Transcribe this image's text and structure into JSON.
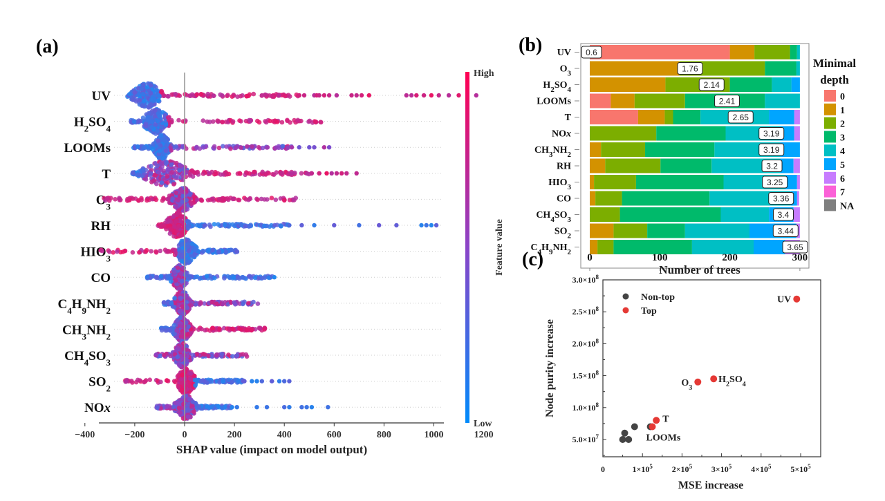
{
  "panels": {
    "a": "(a)",
    "b": "(b)",
    "c": "(c)"
  },
  "chart_data": [
    {
      "id": "a",
      "type": "scatter",
      "subtype": "shap-beeswarm",
      "title": "",
      "xlabel": "SHAP value (impact on model output)",
      "ylabel": "",
      "xlim": [
        -420,
        1260
      ],
      "xticks": [
        -400,
        -200,
        0,
        200,
        400,
        600,
        800,
        1000,
        1200
      ],
      "xtick_labels": [
        "−400",
        "−200",
        "0",
        "200",
        "400",
        "600",
        "800",
        "1000",
        "1200"
      ],
      "colorbar": {
        "label": "Feature value",
        "high": "High",
        "low": "Low",
        "high_color": "#ff0052",
        "mid_color": "#a42aa0",
        "low_color": "#008bfb"
      },
      "features": [
        {
          "name": "UV",
          "html": "UV",
          "min": -230,
          "max": 1170,
          "core": [
            -190,
            -110
          ],
          "core_value": "low",
          "tail_right_value": "high",
          "tail_left_value": "low",
          "outliers": [
            460,
            480,
            520,
            530,
            540,
            560,
            580,
            610,
            670,
            690,
            710,
            740,
            890,
            910,
            930,
            960,
            990,
            1020,
            1060,
            1100,
            1170
          ]
        },
        {
          "name": "H2SO4",
          "html": "H<tspan baseline-shift='sub' font-size='13'>2</tspan>SO<tspan baseline-shift='sub' font-size='13'>4</tspan>",
          "min": -215,
          "max": 560,
          "core": [
            -150,
            -80
          ],
          "core_value": "low",
          "tail_right_value": "high",
          "tail_left_value": "low",
          "outliers": []
        },
        {
          "name": "LOOMs",
          "html": "LOOMs",
          "min": -205,
          "max": 580,
          "core": [
            -110,
            -70
          ],
          "core_value": "low",
          "tail_right_value": "mixed",
          "tail_left_value": "low",
          "outliers": [
            430,
            460,
            500,
            520,
            560,
            580
          ]
        },
        {
          "name": "T",
          "html": "T",
          "min": -210,
          "max": 690,
          "core": [
            -150,
            0
          ],
          "core_value": "mixed",
          "tail_right_value": "high",
          "tail_left_value": "low",
          "outliers": [
            510,
            540,
            570,
            590,
            610,
            630,
            650,
            690
          ]
        },
        {
          "name": "O3",
          "html": "O<tspan baseline-shift='sub' font-size='13'>3</tspan>",
          "min": -345,
          "max": 450,
          "core": [
            -40,
            20
          ],
          "core_value": "mixed",
          "tail_right_value": "high",
          "tail_left_value": "high",
          "outliers": []
        },
        {
          "name": "RH",
          "html": "RH",
          "min": -110,
          "max": 1010,
          "core": [
            -60,
            0
          ],
          "core_value": "high",
          "tail_right_value": "low",
          "tail_left_value": "high",
          "outliers": [
            420,
            470,
            520,
            600,
            700,
            780,
            850,
            950,
            970,
            990,
            1010
          ]
        },
        {
          "name": "HIO3",
          "html": "HIO<tspan baseline-shift='sub' font-size='13'>3</tspan>",
          "min": -345,
          "max": 215,
          "core": [
            -20,
            30
          ],
          "core_value": "low",
          "tail_right_value": "low",
          "tail_left_value": "high",
          "outliers": []
        },
        {
          "name": "CO",
          "html": "CO",
          "min": -150,
          "max": 360,
          "core": [
            -40,
            0
          ],
          "core_value": "mixed",
          "tail_right_value": "low",
          "tail_left_value": "low",
          "outliers": [
            360
          ]
        },
        {
          "name": "C4H9NH2",
          "html": "C<tspan baseline-shift='sub' font-size='13'>4</tspan>H<tspan baseline-shift='sub' font-size='13'>9</tspan>NH<tspan baseline-shift='sub' font-size='13'>2</tspan>",
          "min": -85,
          "max": 295,
          "core": [
            -30,
            10
          ],
          "core_value": "mixed",
          "tail_right_value": "mixed",
          "tail_left_value": "low",
          "outliers": []
        },
        {
          "name": "CH3NH2",
          "html": "CH<tspan baseline-shift='sub' font-size='13'>3</tspan>NH<tspan baseline-shift='sub' font-size='13'>2</tspan>",
          "min": -95,
          "max": 325,
          "core": [
            -30,
            10
          ],
          "core_value": "mixed",
          "tail_right_value": "high",
          "tail_left_value": "low",
          "outliers": []
        },
        {
          "name": "CH4SO3",
          "html": "CH<tspan baseline-shift='sub' font-size='13'>4</tspan>SO<tspan baseline-shift='sub' font-size='13'>3</tspan>",
          "min": -125,
          "max": 250,
          "core": [
            -30,
            10
          ],
          "core_value": "mixed",
          "tail_right_value": "mixed",
          "tail_left_value": "mixed",
          "outliers": []
        },
        {
          "name": "SO2",
          "html": "SO<tspan baseline-shift='sub' font-size='13'>2</tspan>",
          "min": -240,
          "max": 420,
          "core": [
            -20,
            30
          ],
          "core_value": "high",
          "tail_right_value": "low",
          "tail_left_value": "high",
          "outliers": [
            240,
            270,
            290,
            310,
            350,
            380,
            400,
            420
          ]
        },
        {
          "name": "NOx",
          "html": "NO<tspan font-style='italic'>x</tspan>",
          "min": -115,
          "max": 575,
          "core": [
            -20,
            30
          ],
          "core_value": "mixed",
          "tail_right_value": "low",
          "tail_left_value": "mixed",
          "outliers": [
            190,
            210,
            290,
            330,
            400,
            420,
            470,
            490,
            510,
            575
          ]
        }
      ]
    },
    {
      "id": "b",
      "type": "bar",
      "subtype": "stacked-horizontal",
      "title": "",
      "xlabel": "Number  of trees",
      "ylabel": "",
      "xlim": [
        0,
        300
      ],
      "xticks": [
        0,
        100,
        200,
        300
      ],
      "legend": {
        "title_line1": "Minimal",
        "title_line2": "depth",
        "position": "right"
      },
      "depth_levels": [
        "0",
        "1",
        "2",
        "3",
        "4",
        "5",
        "6",
        "7",
        "NA"
      ],
      "depth_colors": [
        "#f8766d",
        "#d39200",
        "#7cae00",
        "#00ba6b",
        "#00bfc4",
        "#00a5ff",
        "#c77cff",
        "#fb61d7",
        "#7f7f7f"
      ],
      "categories": [
        "UV",
        "O3",
        "H2SO4",
        "LOOMs",
        "T",
        "NOx",
        "CH3NH2",
        "RH",
        "HIO3",
        "CO",
        "CH4SO3",
        "SO2",
        "C4H9NH2"
      ],
      "category_html": [
        "UV",
        "O<tspan baseline-shift='sub' font-size='11'>3</tspan>",
        "H<tspan baseline-shift='sub' font-size='11'>2</tspan>SO<tspan baseline-shift='sub' font-size='11'>4</tspan>",
        "LOOMs",
        "T",
        "NO<tspan font-style='italic'>x</tspan>",
        "CH<tspan baseline-shift='sub' font-size='11'>3</tspan>NH<tspan baseline-shift='sub' font-size='11'>2</tspan>",
        "RH",
        "HIO<tspan baseline-shift='sub' font-size='11'>3</tspan>",
        "CO",
        "CH<tspan baseline-shift='sub' font-size='11'>4</tspan>SO<tspan baseline-shift='sub' font-size='11'>3</tspan>",
        "SO<tspan baseline-shift='sub' font-size='11'>2</tspan>",
        "C<tspan baseline-shift='sub' font-size='11'>4</tspan>H<tspan baseline-shift='sub' font-size='11'>9</tspan>NH<tspan baseline-shift='sub' font-size='11'>2</tspan>"
      ],
      "series_counts_by_depth": [
        [
          200,
          35,
          51,
          10,
          4,
          0,
          0,
          0,
          0
        ],
        [
          0,
          128,
          122,
          45,
          5,
          0,
          0,
          0,
          0
        ],
        [
          0,
          108,
          92,
          60,
          28,
          12,
          0,
          0,
          0
        ],
        [
          30,
          34,
          72,
          114,
          50,
          0,
          0,
          0,
          0
        ],
        [
          69,
          38,
          12,
          39,
          98,
          36,
          8,
          0,
          0
        ],
        [
          0,
          0,
          95,
          99,
          77,
          21,
          8,
          0,
          0
        ],
        [
          0,
          16,
          63,
          99,
          94,
          28,
          0,
          0,
          0
        ],
        [
          0,
          22,
          79,
          73,
          98,
          19,
          9,
          0,
          0
        ],
        [
          0,
          6,
          60,
          125,
          88,
          17,
          4,
          0,
          0
        ],
        [
          0,
          8,
          38,
          125,
          116,
          9,
          3,
          0,
          0
        ],
        [
          0,
          0,
          43,
          144,
          69,
          35,
          9,
          0,
          0
        ],
        [
          0,
          34,
          48,
          54,
          92,
          67,
          5,
          0,
          0
        ],
        [
          0,
          11,
          23,
          112,
          88,
          45,
          21,
          0,
          0
        ]
      ],
      "mean_min_depth": [
        "0.6",
        "1.76",
        "2.14",
        "2.41",
        "2.65",
        "3.19",
        "3.19",
        "3.2",
        "3.25",
        "3.36",
        "3.4",
        "3.44",
        "3.65"
      ]
    },
    {
      "id": "c",
      "type": "scatter",
      "title": "",
      "xlabel": "MSE increase",
      "ylabel": "Node purity increase",
      "xlim": [
        0,
        550000
      ],
      "ylim": [
        25000000,
        300000000
      ],
      "xticks": [
        0,
        100000,
        200000,
        300000,
        400000,
        500000
      ],
      "xtick_labels": [
        {
          "m": "0",
          "e": ""
        },
        {
          "m": "1×10",
          "e": "5"
        },
        {
          "m": "2×10",
          "e": "5"
        },
        {
          "m": "3×10",
          "e": "5"
        },
        {
          "m": "4×10",
          "e": "5"
        },
        {
          "m": "5×10",
          "e": "5"
        }
      ],
      "yticks": [
        50000000,
        100000000,
        150000000,
        200000000,
        250000000,
        300000000
      ],
      "ytick_labels": [
        {
          "m": "5.0×10",
          "e": "7"
        },
        {
          "m": "1.0×10",
          "e": "8"
        },
        {
          "m": "1.5×10",
          "e": "8"
        },
        {
          "m": "2.0×10",
          "e": "8"
        },
        {
          "m": "2.5×10",
          "e": "8"
        },
        {
          "m": "3.0×10",
          "e": "8"
        }
      ],
      "legend": {
        "position": "top-left",
        "entries": [
          {
            "label": "Non-top",
            "color": "#444444"
          },
          {
            "label": "Top",
            "color": "#e53935"
          }
        ]
      },
      "series": [
        {
          "name": "Non-top",
          "color": "#444444",
          "points": [
            {
              "x": 120000,
              "y": 70000000
            },
            {
              "x": 80000,
              "y": 70000000
            },
            {
              "x": 55000,
              "y": 60000000
            },
            {
              "x": 50000,
              "y": 50000000
            },
            {
              "x": 65000,
              "y": 50000000
            }
          ]
        },
        {
          "name": "Top",
          "color": "#e53935",
          "points": [
            {
              "x": 490000,
              "y": 270000000,
              "label": "UV"
            },
            {
              "x": 280000,
              "y": 145000000,
              "label": "H2SO4"
            },
            {
              "x": 240000,
              "y": 140000000,
              "label": "O3"
            },
            {
              "x": 135000,
              "y": 80000000,
              "label": "T"
            },
            {
              "x": 125000,
              "y": 70000000,
              "label": "LOOMs"
            }
          ]
        }
      ]
    }
  ]
}
